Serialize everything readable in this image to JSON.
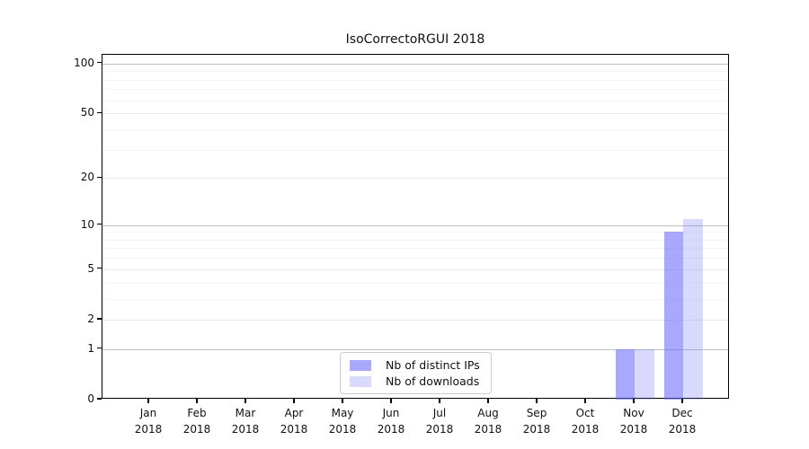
{
  "chart_data": {
    "type": "bar",
    "title": "IsoCorrectoRGUI 2018",
    "categories": [
      "Jan",
      "Feb",
      "Mar",
      "Apr",
      "May",
      "Jun",
      "Jul",
      "Aug",
      "Sep",
      "Oct",
      "Nov",
      "Dec"
    ],
    "category_year": "2018",
    "series": [
      {
        "name": "Nb of distinct IPs",
        "color": "rgba(102,102,250,0.57)",
        "values": [
          0,
          0,
          0,
          0,
          0,
          0,
          0,
          0,
          0,
          0,
          1,
          9
        ]
      },
      {
        "name": "Nb of downloads",
        "color": "rgba(102,102,250,0.25)",
        "values": [
          0,
          0,
          0,
          0,
          0,
          0,
          0,
          0,
          0,
          0,
          1,
          11
        ]
      }
    ],
    "yscale": "log1p",
    "yticks": [
      0,
      1,
      2,
      5,
      10,
      20,
      50,
      100
    ],
    "yticks_minor": [
      3,
      4,
      6,
      7,
      8,
      9,
      30,
      40,
      60,
      70,
      80,
      90
    ],
    "ylim": [
      0,
      113
    ],
    "xlabel": "",
    "ylabel": "",
    "grid": true,
    "legend_position": "bottom-center"
  },
  "colors": {
    "grid_major": "#c0c0c0",
    "grid_mid": "#e9e9e9",
    "grid_minor": "#f4f4f4",
    "spine": "#000000",
    "text": "#111111",
    "legend_border": "#cccccc",
    "background": "#ffffff"
  }
}
